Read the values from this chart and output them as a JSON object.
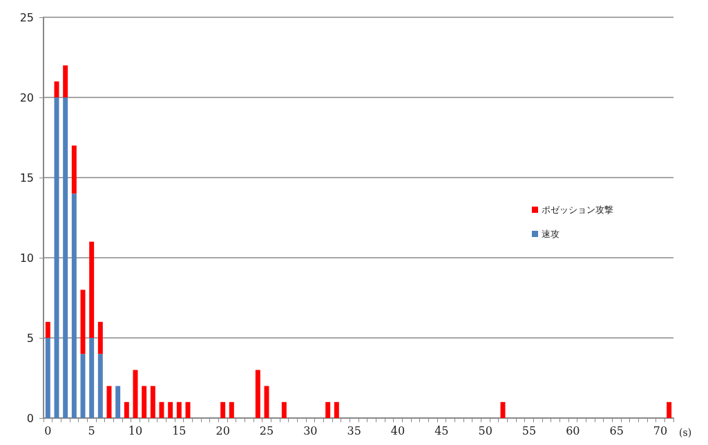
{
  "chart_data": {
    "type": "bar",
    "stacked": true,
    "xlabel": "(s)",
    "categories": [
      "0",
      null,
      null,
      null,
      null,
      "5",
      null,
      null,
      null,
      null,
      "10",
      null,
      null,
      null,
      null,
      "15",
      null,
      null,
      null,
      null,
      "20",
      null,
      null,
      null,
      null,
      "25",
      null,
      null,
      null,
      null,
      "30",
      null,
      null,
      null,
      null,
      "35",
      null,
      null,
      null,
      null,
      "40",
      null,
      null,
      null,
      null,
      "45",
      null,
      null,
      null,
      null,
      "50",
      null,
      null,
      null,
      null,
      "55",
      null,
      null,
      null,
      null,
      "60",
      null,
      null,
      null,
      null,
      "65",
      null,
      null,
      null,
      null,
      "70",
      null
    ],
    "series": [
      {
        "name": "速攻",
        "color": "#4f81bd",
        "values": [
          5,
          20,
          20,
          14,
          4,
          5,
          4,
          null,
          2,
          null,
          null,
          null,
          null,
          null,
          null,
          null,
          null,
          null,
          null,
          null,
          null,
          null,
          null,
          null,
          null,
          null,
          null,
          null,
          null,
          null,
          null,
          null,
          null,
          null,
          null,
          null,
          null,
          null,
          null,
          null,
          null,
          null,
          null,
          null,
          null,
          null,
          null,
          null,
          null,
          null,
          null,
          null,
          null,
          null,
          null,
          null,
          null,
          null,
          null,
          null,
          null,
          null,
          null,
          null,
          null,
          null,
          null,
          null,
          null,
          null,
          null,
          null
        ]
      },
      {
        "name": "ポゼッション攻撃",
        "color": "#ff0000",
        "values": [
          1,
          1,
          2,
          3,
          4,
          6,
          2,
          2,
          null,
          1,
          3,
          2,
          2,
          1,
          1,
          1,
          1,
          null,
          null,
          null,
          1,
          1,
          null,
          null,
          3,
          2,
          null,
          1,
          null,
          null,
          null,
          null,
          1,
          1,
          null,
          null,
          null,
          null,
          null,
          null,
          null,
          null,
          null,
          null,
          null,
          null,
          null,
          null,
          null,
          null,
          null,
          null,
          1,
          null,
          null,
          null,
          null,
          null,
          null,
          null,
          null,
          null,
          null,
          null,
          null,
          null,
          null,
          null,
          null,
          null,
          null,
          1
        ]
      }
    ],
    "ylim": [
      0,
      25
    ],
    "yticks": [
      0,
      5,
      10,
      15,
      20,
      25
    ],
    "grid": "y",
    "legend": "right"
  }
}
